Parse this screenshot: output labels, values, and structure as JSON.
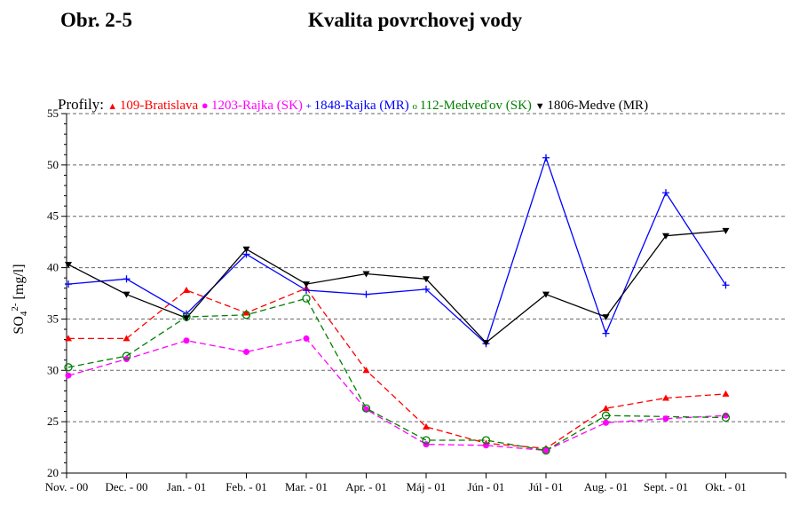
{
  "header": {
    "figure_number": "Obr. 2-5",
    "title": "Kvalita povrchovej vody"
  },
  "chart_data": {
    "type": "line",
    "title": "Kvalita povrchovej vody",
    "legend_title": "Profily:",
    "legend_position": "top",
    "ylabel": "SO₄²⁻ [mg/l]",
    "ylabel_parts": {
      "base": "SO",
      "sub": "4",
      "sup": "2-",
      "unit": " [mg/l]"
    },
    "xlabel": "",
    "ylim": [
      20,
      55
    ],
    "yticks": [
      20,
      25,
      30,
      35,
      40,
      45,
      50,
      55
    ],
    "grid": "horizontal dashed",
    "categories": [
      "Nov. - 00",
      "Dec. - 00",
      "Jan. - 01",
      "Feb. - 01",
      "Mar. - 01",
      "Apr. - 01",
      "Máj - 01",
      "Jún - 01",
      "Júl - 01",
      "Aug. - 01",
      "Sept. - 01",
      "Okt. - 01"
    ],
    "series": [
      {
        "name": "109-Bratislava",
        "color": "#ff0000",
        "marker": "triangle-up",
        "dashed": true,
        "values": [
          33.1,
          33.1,
          37.8,
          35.6,
          38.0,
          30.0,
          24.5,
          22.9,
          22.4,
          26.3,
          27.3,
          27.7
        ]
      },
      {
        "name": "1203-Rajka (SK)",
        "color": "#ff00ff",
        "marker": "circle",
        "dashed": true,
        "values": [
          29.5,
          31.1,
          32.9,
          31.8,
          33.1,
          26.2,
          22.8,
          22.7,
          22.2,
          24.9,
          25.3,
          25.6
        ]
      },
      {
        "name": "1848-Rajka (MR)",
        "color": "#0000ff",
        "marker": "plus",
        "dashed": false,
        "values": [
          38.4,
          38.9,
          35.5,
          41.3,
          37.8,
          37.4,
          37.9,
          32.6,
          50.7,
          33.6,
          47.3,
          38.3
        ]
      },
      {
        "name": "112-Medveďov (SK)",
        "color": "#008000",
        "marker": "open-circle",
        "dashed": true,
        "values": [
          30.3,
          31.4,
          35.2,
          35.4,
          37.0,
          26.3,
          23.2,
          23.2,
          22.2,
          25.6,
          null,
          25.4
        ]
      },
      {
        "name": "1806-Medve (MR)",
        "color": "#000000",
        "marker": "triangle-down",
        "dashed": false,
        "values": [
          40.3,
          37.4,
          35.1,
          41.8,
          38.4,
          39.4,
          38.9,
          32.7,
          37.4,
          35.2,
          43.1,
          43.6
        ]
      }
    ]
  }
}
